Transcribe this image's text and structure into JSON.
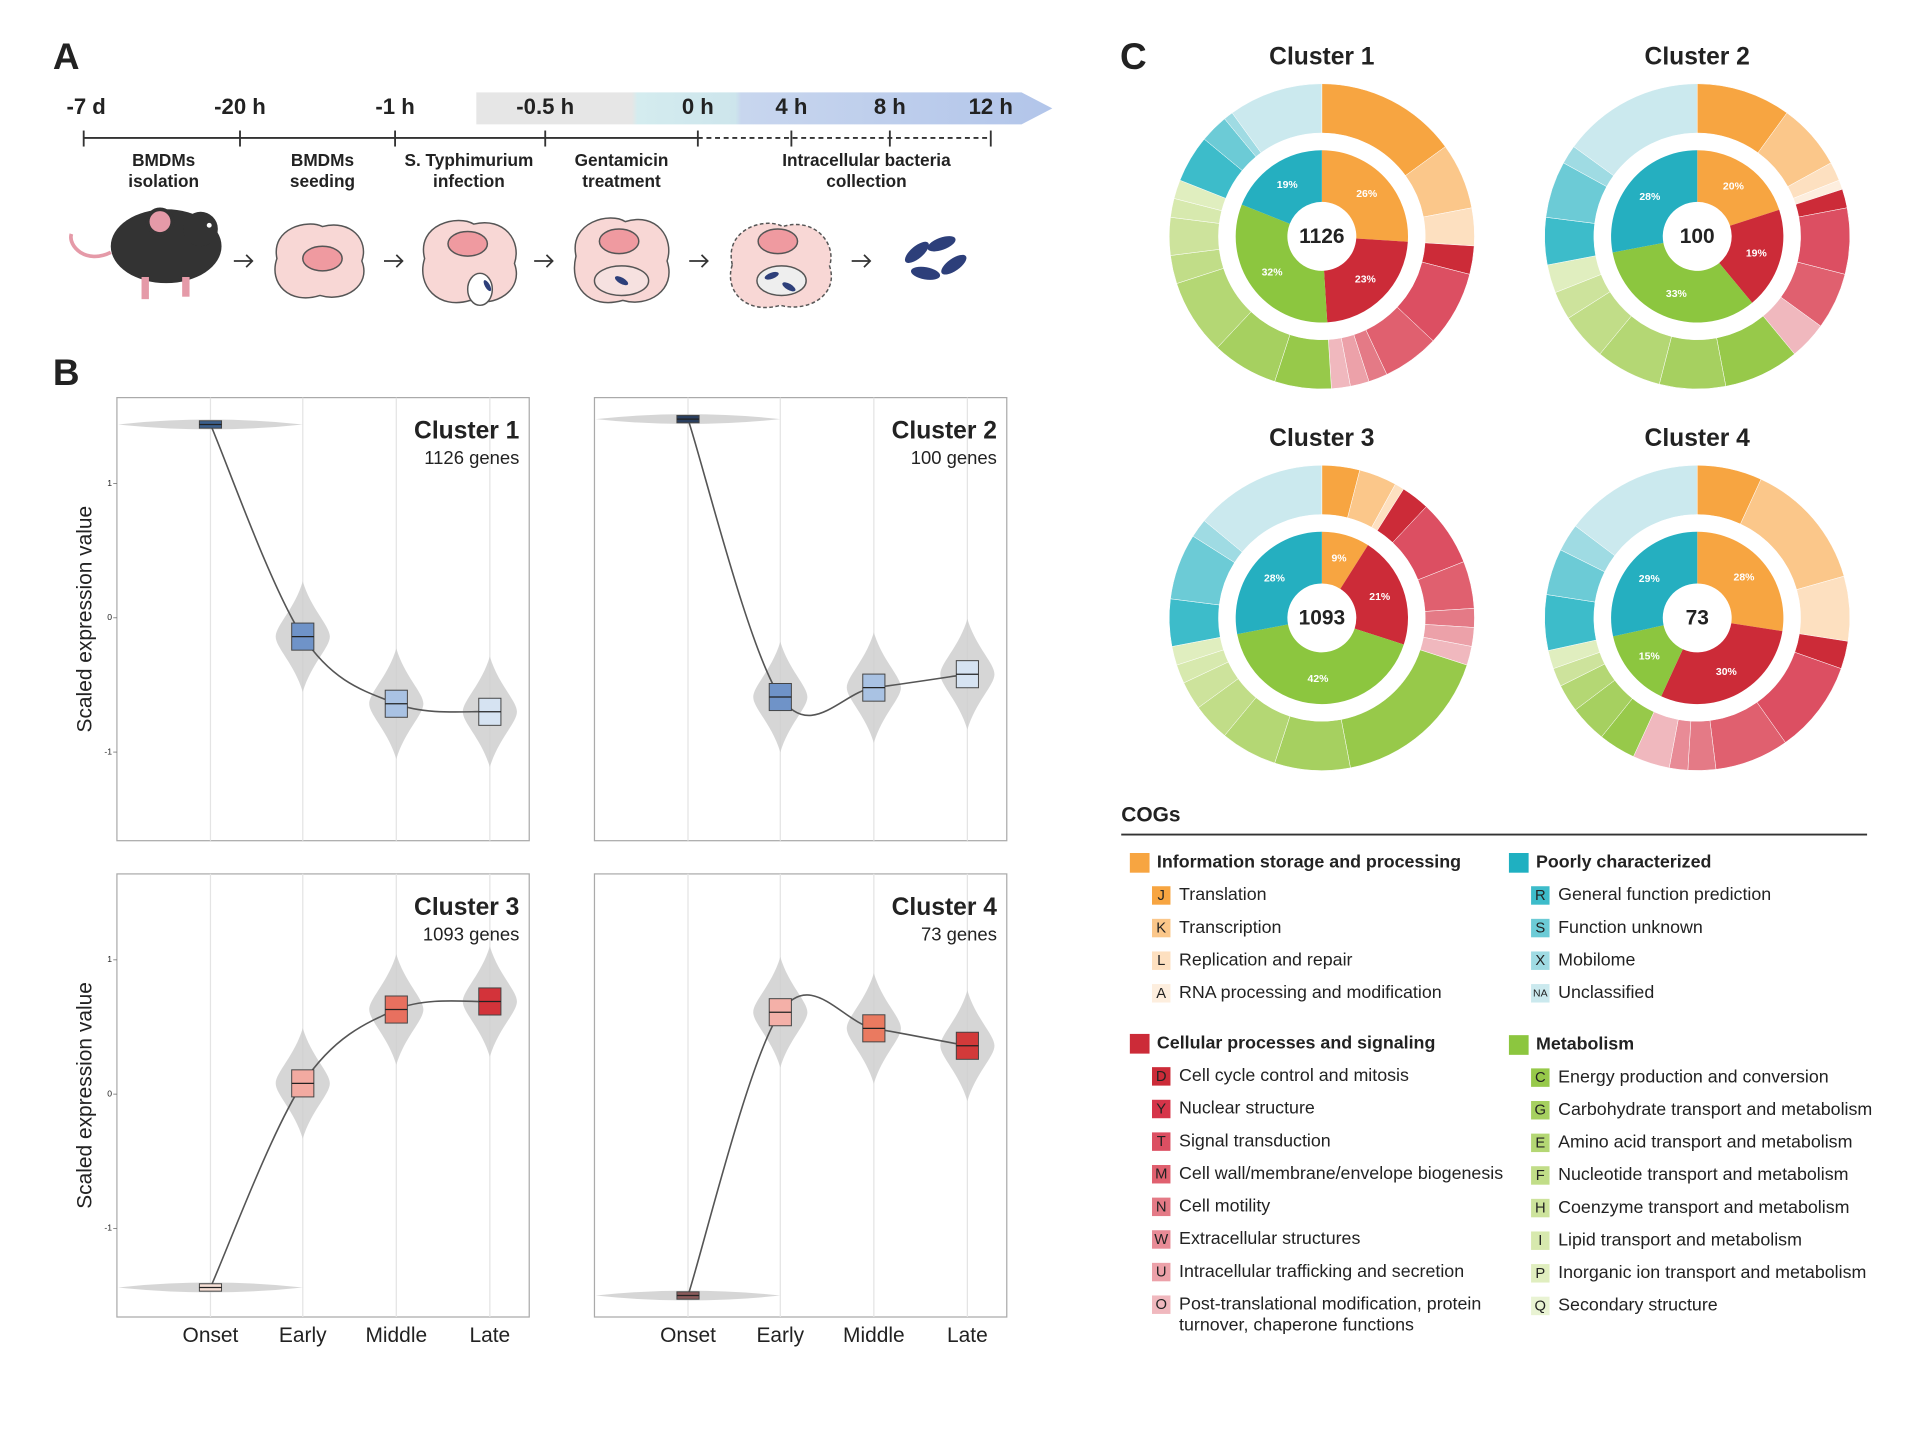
{
  "panel_a": {
    "label": "A",
    "times": [
      "-7 d",
      "-20 h",
      "-1 h",
      "-0.5 h",
      "0 h",
      "4 h",
      "8 h",
      "12 h"
    ],
    "events": [
      {
        "lines": [
          "BMDMs",
          "isolation"
        ]
      },
      {
        "lines": [
          "BMDMs",
          "seeding"
        ]
      },
      {
        "lines": [
          "S. Typhimurium",
          "infection"
        ]
      },
      {
        "lines": [
          "Gentamicin",
          "treatment"
        ]
      },
      {
        "lines": [
          "Intracellular bacteria",
          "collection"
        ]
      }
    ]
  },
  "panel_b": {
    "label": "B",
    "y_label": "Scaled expression value",
    "categories": [
      "Onset",
      "Early",
      "Middle",
      "Late"
    ],
    "ylim": [
      -1.66,
      1.64
    ],
    "clusters": [
      {
        "title": "Cluster 1",
        "subtitle": "1126 genes",
        "values": [
          1.44,
          -0.14,
          -0.64,
          -0.7
        ],
        "colors": [
          "#3b5f8c",
          "#6f93c8",
          "#a9c2e3",
          "#d6e3f2"
        ],
        "yticks": [
          1,
          0,
          -1
        ]
      },
      {
        "title": "Cluster 2",
        "subtitle": "100 genes",
        "values": [
          1.48,
          -0.59,
          -0.52,
          -0.42
        ],
        "colors": [
          "#2a3f5f",
          "#6f93c8",
          "#a9c2e3",
          "#d6e3f2"
        ]
      },
      {
        "title": "Cluster 3",
        "subtitle": "1093 genes",
        "values": [
          -1.44,
          0.08,
          0.63,
          0.69
        ],
        "colors": [
          "#f7e0d6",
          "#f2aaa1",
          "#e8705f",
          "#d3333a"
        ],
        "yticks": [
          1,
          0,
          -1
        ]
      },
      {
        "title": "Cluster 4",
        "subtitle": "73 genes",
        "values": [
          -1.5,
          0.61,
          0.49,
          0.36
        ],
        "colors": [
          "#8a5a5a",
          "#f4b0a8",
          "#ea7a60",
          "#d33a3a"
        ]
      }
    ]
  },
  "panel_c": {
    "label": "C",
    "donuts": [
      {
        "title": "Cluster 1",
        "total": 1126,
        "inner": [
          {
            "value": 26,
            "label": "26%",
            "color": "#f7a541"
          },
          {
            "value": 23,
            "label": "23%",
            "color": "#cc2b38"
          },
          {
            "value": 32,
            "label": "32%",
            "color": "#8cc63f"
          },
          {
            "value": 19,
            "label": "19%",
            "color": "#25afc0"
          }
        ],
        "outer": [
          {
            "value": 15,
            "color": "#f7a541"
          },
          {
            "value": 7,
            "color": "#fbc78a"
          },
          {
            "value": 4,
            "color": "#fde0c0"
          },
          {
            "value": 3,
            "color": "#cc2b38"
          },
          {
            "value": 8,
            "color": "#dc4f62"
          },
          {
            "value": 6,
            "color": "#e0606f"
          },
          {
            "value": 2,
            "color": "#e47a86"
          },
          {
            "value": 2,
            "color": "#eca1a9"
          },
          {
            "value": 2,
            "color": "#f0b8be"
          },
          {
            "value": 6,
            "color": "#97c94a"
          },
          {
            "value": 7,
            "color": "#a6d060"
          },
          {
            "value": 8,
            "color": "#b4d774"
          },
          {
            "value": 3,
            "color": "#c1dd88"
          },
          {
            "value": 4,
            "color": "#cde39c"
          },
          {
            "value": 2,
            "color": "#d7e9ae"
          },
          {
            "value": 2,
            "color": "#e0eebf"
          },
          {
            "value": 5,
            "color": "#3dbcca"
          },
          {
            "value": 3,
            "color": "#6ccbd6"
          },
          {
            "value": 1,
            "color": "#9fdbe3"
          },
          {
            "value": 10,
            "color": "#cbe9ee"
          }
        ]
      },
      {
        "title": "Cluster 2",
        "total": 100,
        "inner": [
          {
            "value": 20,
            "label": "20%",
            "color": "#f7a541"
          },
          {
            "value": 19,
            "label": "19%",
            "color": "#cc2b38"
          },
          {
            "value": 33,
            "label": "33%",
            "color": "#8cc63f"
          },
          {
            "value": 28,
            "label": "28%",
            "color": "#25afc0"
          }
        ],
        "outer": [
          {
            "value": 10,
            "color": "#f7a541"
          },
          {
            "value": 7,
            "color": "#fbc78a"
          },
          {
            "value": 2,
            "color": "#fde0c0"
          },
          {
            "value": 1,
            "color": "#fdeede"
          },
          {
            "value": 2,
            "color": "#cc2b38"
          },
          {
            "value": 7,
            "color": "#dc4f62"
          },
          {
            "value": 6,
            "color": "#e0606f"
          },
          {
            "value": 4,
            "color": "#f0b8be"
          },
          {
            "value": 8,
            "color": "#97c94a"
          },
          {
            "value": 7,
            "color": "#a6d060"
          },
          {
            "value": 7,
            "color": "#b4d774"
          },
          {
            "value": 5,
            "color": "#c1dd88"
          },
          {
            "value": 3,
            "color": "#cde39c"
          },
          {
            "value": 3,
            "color": "#e0eebf"
          },
          {
            "value": 5,
            "color": "#3dbcca"
          },
          {
            "value": 6,
            "color": "#6ccbd6"
          },
          {
            "value": 2,
            "color": "#9fdbe3"
          },
          {
            "value": 15,
            "color": "#cbe9ee"
          }
        ]
      },
      {
        "title": "Cluster 3",
        "total": 1093,
        "inner": [
          {
            "value": 9,
            "label": "9%",
            "color": "#f7a541"
          },
          {
            "value": 21,
            "label": "21%",
            "color": "#cc2b38"
          },
          {
            "value": 42,
            "label": "42%",
            "color": "#8cc63f"
          },
          {
            "value": 28,
            "label": "28%",
            "color": "#25afc0"
          }
        ],
        "outer": [
          {
            "value": 4,
            "color": "#f7a541"
          },
          {
            "value": 4,
            "color": "#fbc78a"
          },
          {
            "value": 1,
            "color": "#fde0c0"
          },
          {
            "value": 3,
            "color": "#cc2b38"
          },
          {
            "value": 7,
            "color": "#dc4f62"
          },
          {
            "value": 5,
            "color": "#e0606f"
          },
          {
            "value": 2,
            "color": "#e47a86"
          },
          {
            "value": 2,
            "color": "#eca1a9"
          },
          {
            "value": 2,
            "color": "#f0b8be"
          },
          {
            "value": 17,
            "color": "#97c94a"
          },
          {
            "value": 8,
            "color": "#a6d060"
          },
          {
            "value": 6,
            "color": "#b4d774"
          },
          {
            "value": 4,
            "color": "#c1dd88"
          },
          {
            "value": 3,
            "color": "#cde39c"
          },
          {
            "value": 2,
            "color": "#d7e9ae"
          },
          {
            "value": 2,
            "color": "#e0eebf"
          },
          {
            "value": 5,
            "color": "#3dbcca"
          },
          {
            "value": 7,
            "color": "#6ccbd6"
          },
          {
            "value": 2,
            "color": "#9fdbe3"
          },
          {
            "value": 14,
            "color": "#cbe9ee"
          }
        ]
      },
      {
        "title": "Cluster 4",
        "total": 73,
        "inner": [
          {
            "value": 28,
            "label": "28%",
            "color": "#f7a541"
          },
          {
            "value": 30,
            "label": "30%",
            "color": "#cc2b38"
          },
          {
            "value": 15,
            "label": "15%",
            "color": "#8cc63f"
          },
          {
            "value": 29,
            "label": "29%",
            "color": "#25afc0"
          }
        ],
        "outer": [
          {
            "value": 7,
            "color": "#f7a541"
          },
          {
            "value": 14,
            "color": "#fbc78a"
          },
          {
            "value": 7,
            "color": "#fde0c0"
          },
          {
            "value": 3,
            "color": "#cc2b38"
          },
          {
            "value": 10,
            "color": "#dc4f62"
          },
          {
            "value": 8,
            "color": "#e0606f"
          },
          {
            "value": 3,
            "color": "#e47a86"
          },
          {
            "value": 2,
            "color": "#e88b96"
          },
          {
            "value": 4,
            "color": "#f0b8be"
          },
          {
            "value": 4,
            "color": "#97c94a"
          },
          {
            "value": 4,
            "color": "#a6d060"
          },
          {
            "value": 3,
            "color": "#b4d774"
          },
          {
            "value": 2,
            "color": "#cde39c"
          },
          {
            "value": 2,
            "color": "#e0eebf"
          },
          {
            "value": 6,
            "color": "#3dbcca"
          },
          {
            "value": 5,
            "color": "#6ccbd6"
          },
          {
            "value": 3,
            "color": "#9fdbe3"
          },
          {
            "value": 15,
            "color": "#cbe9ee"
          }
        ]
      }
    ],
    "legend_title": "COGs",
    "groups": [
      {
        "name": "Information storage and processing",
        "color": "#f7a541",
        "items": [
          {
            "code": "J",
            "name": [
              "Translation"
            ],
            "color": "#f7a541"
          },
          {
            "code": "K",
            "name": [
              "Transcription"
            ],
            "color": "#fbc78a"
          },
          {
            "code": "L",
            "name": [
              "Replication and repair"
            ],
            "color": "#fde0c0"
          },
          {
            "code": "A",
            "name": [
              "RNA processing and modification"
            ],
            "color": "#fdeede"
          }
        ]
      },
      {
        "name": "Poorly characterized",
        "color": "#1fb0c1",
        "items": [
          {
            "code": "R",
            "name": [
              "General function prediction"
            ],
            "color": "#3dbcca"
          },
          {
            "code": "S",
            "name": [
              "Function unknown"
            ],
            "color": "#6ccbd6"
          },
          {
            "code": "X",
            "name": [
              "Mobilome"
            ],
            "color": "#9fdbe3"
          },
          {
            "code": "NA",
            "name": [
              "Unclassified"
            ],
            "color": "#cbe9ee"
          }
        ]
      },
      {
        "name": "Cellular processes and signaling",
        "color": "#cc2b38",
        "items": [
          {
            "code": "D",
            "name": [
              "Cell cycle control and mitosis"
            ],
            "color": "#cc2b38"
          },
          {
            "code": "Y",
            "name": [
              "Nuclear structure"
            ],
            "color": "#d63449"
          },
          {
            "code": "T",
            "name": [
              "Signal transduction"
            ],
            "color": "#dc4f62"
          },
          {
            "code": "M",
            "name": [
              "Cell wall/membrane/envelope biogenesis"
            ],
            "color": "#e0606f"
          },
          {
            "code": "N",
            "name": [
              "Cell motility"
            ],
            "color": "#e47a86"
          },
          {
            "code": "W",
            "name": [
              "Extracellular structures"
            ],
            "color": "#e88b96"
          },
          {
            "code": "U",
            "name": [
              "Intracellular trafficking and secretion"
            ],
            "color": "#eca1a9"
          },
          {
            "code": "O",
            "name": [
              "Post-translational modification, protein",
              "turnover, chaperone functions"
            ],
            "color": "#f0b8be"
          }
        ]
      },
      {
        "name": "Metabolism",
        "color": "#8cc63f",
        "items": [
          {
            "code": "C",
            "name": [
              "Energy production and conversion"
            ],
            "color": "#97c94a"
          },
          {
            "code": "G",
            "name": [
              "Carbohydrate transport and metabolism"
            ],
            "color": "#a6d060"
          },
          {
            "code": "E",
            "name": [
              "Amino acid transport and metabolism"
            ],
            "color": "#b4d774"
          },
          {
            "code": "F",
            "name": [
              "Nucleotide transport and metabolism"
            ],
            "color": "#c1dd88"
          },
          {
            "code": "H",
            "name": [
              "Coenzyme transport and metabolism"
            ],
            "color": "#cde39c"
          },
          {
            "code": "I",
            "name": [
              "Lipid transport and metabolism"
            ],
            "color": "#d7e9ae"
          },
          {
            "code": "P",
            "name": [
              "Inorganic ion transport and metabolism"
            ],
            "color": "#e0eebf"
          },
          {
            "code": "Q",
            "name": [
              "Secondary structure"
            ],
            "color": "#e9f3d3"
          }
        ]
      }
    ]
  }
}
